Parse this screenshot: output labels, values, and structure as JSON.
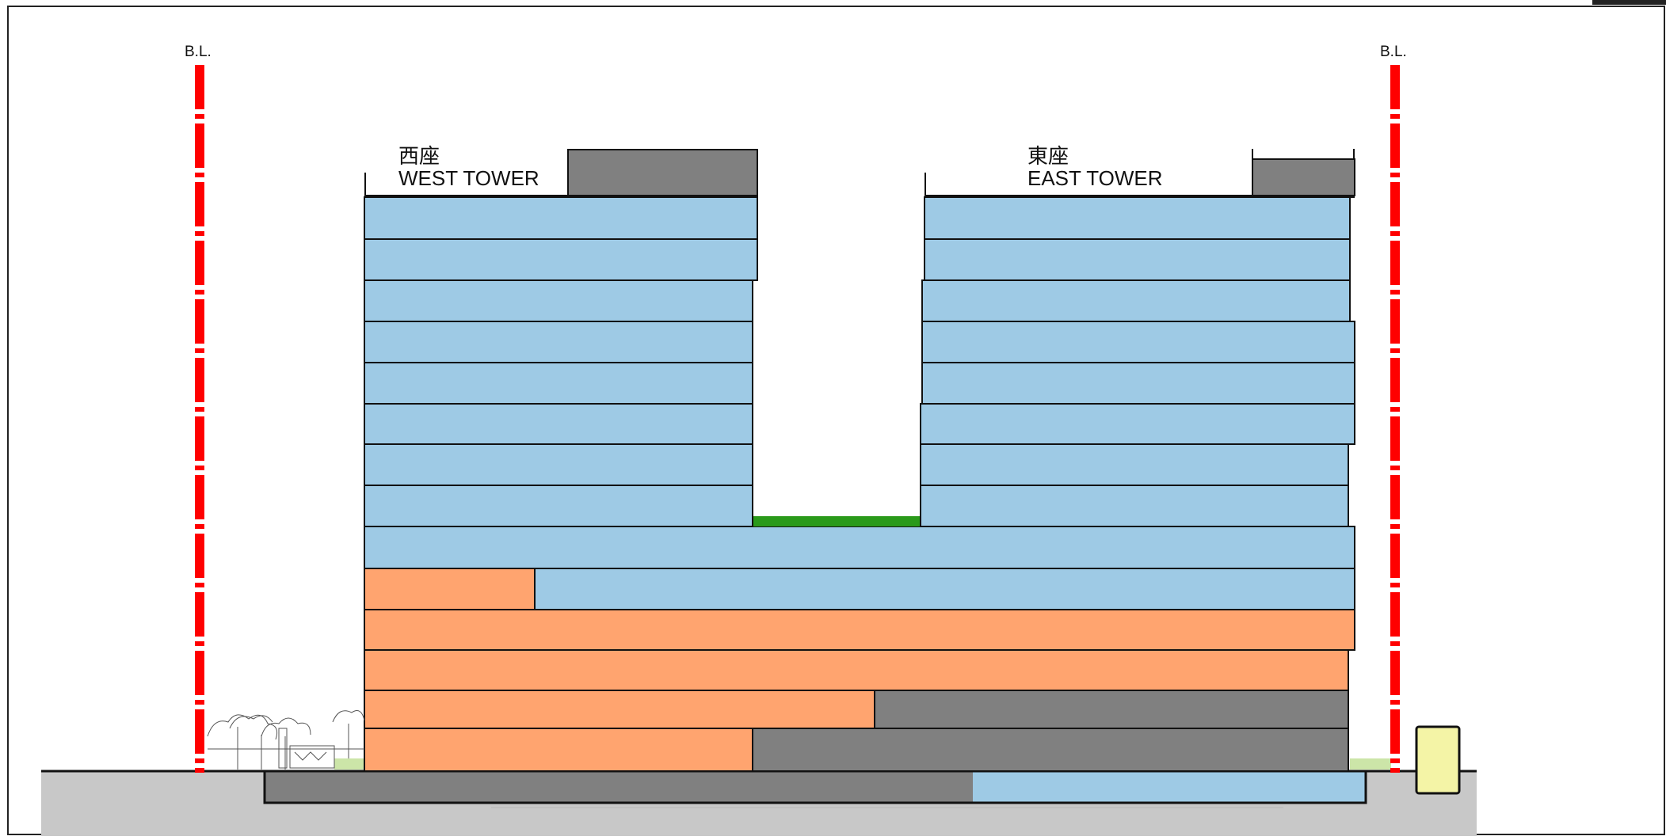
{
  "labels": {
    "boundary_left": "B.L.",
    "boundary_right": "B.L.",
    "west_tower_cn": "西座",
    "west_tower_en": "WEST TOWER",
    "east_tower_cn": "東座",
    "east_tower_en": "EAST TOWER"
  },
  "colors": {
    "office": "#9ecae5",
    "retail": "#ffa46f",
    "parking_services": "#808080",
    "landscape_deck": "#2a9a1a",
    "ground_planting": "#cce5a8",
    "ground": "#c8c8c8",
    "boundary_line": "#ff0000",
    "outline": "#111111",
    "kiosk": "#f4f4a6"
  },
  "legend_semantics": {
    "office": "office",
    "retail": "retail",
    "parking_services": "parking-services",
    "landscape_deck": "landscape-deck",
    "kiosk": "kiosk"
  }
}
